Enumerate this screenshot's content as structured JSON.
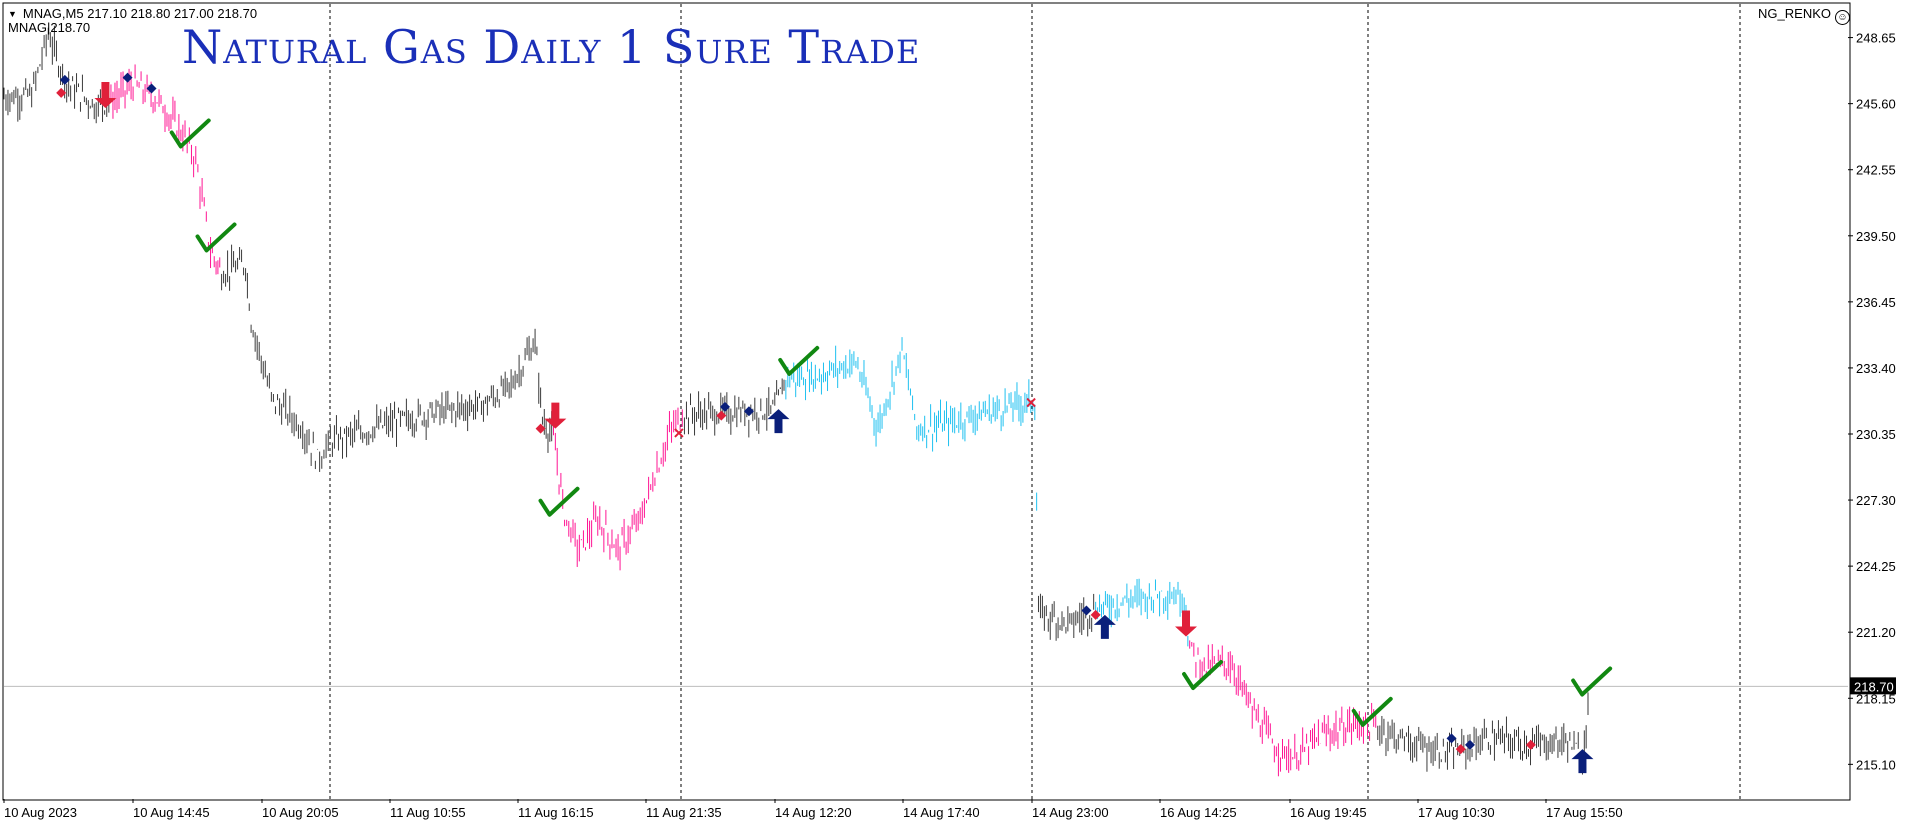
{
  "header": {
    "symbol_info": "MNAG,M5  217.10 218.80 217.00 218.70",
    "price_tag": "MNAG|218.70",
    "banner": "Natural Gas  Daily 1 Sure Trade",
    "indicator_name": "NG_RENKO"
  },
  "colors": {
    "background": "#ffffff",
    "neutral_bars": "#3a3a3a",
    "bearish_trend": "#ff1493",
    "bullish_trend": "#1ec0f0",
    "sell_arrow": "#e0203a",
    "buy_arrow": "#0a1f7a",
    "check": "#118811",
    "banner": "#1a2fb8"
  },
  "chart_data": {
    "type": "line",
    "ylim": [
      213.5,
      250.2
    ],
    "y_ticks": [
      248.65,
      245.6,
      242.55,
      239.5,
      236.45,
      233.4,
      230.35,
      227.3,
      224.25,
      221.2,
      218.15,
      215.1
    ],
    "current_price": 218.7,
    "x_labels": [
      "10 Aug 2023",
      "10 Aug 14:45",
      "10 Aug 20:05",
      "11 Aug 10:55",
      "11 Aug 16:15",
      "11 Aug 21:35",
      "14 Aug 12:20",
      "14 Aug 17:40",
      "14 Aug 23:00",
      "16 Aug 14:25",
      "16 Aug 19:45",
      "17 Aug 10:30",
      "17 Aug 15:50"
    ],
    "session_separators": [
      "11 Aug 2023",
      "14 Aug 2023",
      "16 Aug 2023",
      "17 Aug 2023"
    ],
    "grid": false,
    "price_path": [
      {
        "t": 0.0,
        "p": 245.9,
        "trend": "neutral"
      },
      {
        "t": 0.015,
        "p": 246.0,
        "trend": "neutral"
      },
      {
        "t": 0.024,
        "p": 248.8,
        "trend": "neutral"
      },
      {
        "t": 0.034,
        "p": 246.5,
        "trend": "neutral"
      },
      {
        "t": 0.05,
        "p": 245.5,
        "trend": "neutral"
      },
      {
        "t": 0.058,
        "p": 245.7,
        "trend": "bearish"
      },
      {
        "t": 0.07,
        "p": 246.5,
        "trend": "bearish"
      },
      {
        "t": 0.083,
        "p": 245.8,
        "trend": "bearish"
      },
      {
        "t": 0.097,
        "p": 244.2,
        "trend": "bearish"
      },
      {
        "t": 0.104,
        "p": 243.0,
        "trend": "bearish"
      },
      {
        "t": 0.112,
        "p": 238.8,
        "trend": "bearish"
      },
      {
        "t": 0.118,
        "p": 237.8,
        "trend": "neutral"
      },
      {
        "t": 0.131,
        "p": 238.2,
        "trend": "neutral"
      },
      {
        "t": 0.134,
        "p": 235.6,
        "trend": "neutral"
      },
      {
        "t": 0.145,
        "p": 232.0,
        "trend": "neutral"
      },
      {
        "t": 0.155,
        "p": 231.2,
        "trend": "neutral"
      },
      {
        "t": 0.162,
        "p": 230.6,
        "trend": "neutral"
      },
      {
        "t": 0.17,
        "p": 229.2,
        "trend": "neutral"
      },
      {
        "t": 0.177,
        "p": 230.0,
        "trend": "neutral"
      },
      {
        "t": 0.2,
        "p": 230.6,
        "trend": "neutral"
      },
      {
        "t": 0.23,
        "p": 231.3,
        "trend": "neutral"
      },
      {
        "t": 0.26,
        "p": 231.7,
        "trend": "neutral"
      },
      {
        "t": 0.275,
        "p": 232.6,
        "trend": "neutral"
      },
      {
        "t": 0.288,
        "p": 234.6,
        "trend": "neutral"
      },
      {
        "t": 0.292,
        "p": 231.0,
        "trend": "neutral"
      },
      {
        "t": 0.298,
        "p": 230.2,
        "trend": "bearish"
      },
      {
        "t": 0.304,
        "p": 226.6,
        "trend": "bearish"
      },
      {
        "t": 0.312,
        "p": 225.0,
        "trend": "bearish"
      },
      {
        "t": 0.322,
        "p": 226.4,
        "trend": "bearish"
      },
      {
        "t": 0.333,
        "p": 225.0,
        "trend": "bearish"
      },
      {
        "t": 0.345,
        "p": 226.4,
        "trend": "bearish"
      },
      {
        "t": 0.353,
        "p": 228.5,
        "trend": "bearish"
      },
      {
        "t": 0.362,
        "p": 230.6,
        "trend": "bearish"
      },
      {
        "t": 0.369,
        "p": 231.3,
        "trend": "neutral"
      },
      {
        "t": 0.392,
        "p": 231.3,
        "trend": "neutral"
      },
      {
        "t": 0.418,
        "p": 231.5,
        "trend": "neutral"
      },
      {
        "t": 0.424,
        "p": 232.9,
        "trend": "bullish"
      },
      {
        "t": 0.44,
        "p": 233.0,
        "trend": "bullish"
      },
      {
        "t": 0.462,
        "p": 233.7,
        "trend": "bullish"
      },
      {
        "t": 0.474,
        "p": 230.6,
        "trend": "bullish"
      },
      {
        "t": 0.487,
        "p": 234.3,
        "trend": "bullish"
      },
      {
        "t": 0.495,
        "p": 230.6,
        "trend": "bullish"
      },
      {
        "t": 0.51,
        "p": 230.8,
        "trend": "bullish"
      },
      {
        "t": 0.53,
        "p": 231.3,
        "trend": "bullish"
      },
      {
        "t": 0.559,
        "p": 231.9,
        "trend": "bullish"
      },
      {
        "t": 0.561,
        "p": 222.1,
        "trend": "neutral"
      },
      {
        "t": 0.578,
        "p": 221.6,
        "trend": "neutral"
      },
      {
        "t": 0.592,
        "p": 222.3,
        "trend": "bullish"
      },
      {
        "t": 0.61,
        "p": 222.7,
        "trend": "bullish"
      },
      {
        "t": 0.63,
        "p": 223.0,
        "trend": "bullish"
      },
      {
        "t": 0.64,
        "p": 222.8,
        "trend": "bullish"
      },
      {
        "t": 0.643,
        "p": 220.4,
        "trend": "bearish"
      },
      {
        "t": 0.652,
        "p": 219.6,
        "trend": "bearish"
      },
      {
        "t": 0.665,
        "p": 219.8,
        "trend": "bearish"
      },
      {
        "t": 0.678,
        "p": 217.4,
        "trend": "bearish"
      },
      {
        "t": 0.69,
        "p": 215.8,
        "trend": "bearish"
      },
      {
        "t": 0.7,
        "p": 215.4,
        "trend": "bearish"
      },
      {
        "t": 0.716,
        "p": 216.5,
        "trend": "bearish"
      },
      {
        "t": 0.735,
        "p": 217.0,
        "trend": "bearish"
      },
      {
        "t": 0.745,
        "p": 216.8,
        "trend": "neutral"
      },
      {
        "t": 0.765,
        "p": 216.0,
        "trend": "neutral"
      },
      {
        "t": 0.785,
        "p": 215.6,
        "trend": "neutral"
      },
      {
        "t": 0.805,
        "p": 216.3,
        "trend": "neutral"
      },
      {
        "t": 0.83,
        "p": 216.0,
        "trend": "neutral"
      },
      {
        "t": 0.848,
        "p": 216.2,
        "trend": "neutral"
      },
      {
        "t": 0.856,
        "p": 215.4,
        "trend": "neutral"
      },
      {
        "t": 0.86,
        "p": 218.7,
        "trend": "bullish"
      }
    ],
    "signals": [
      {
        "kind": "sell-arrow",
        "t": 0.055,
        "p": 245.4
      },
      {
        "kind": "sell-arrow",
        "t": 0.299,
        "p": 230.6
      },
      {
        "kind": "sell-arrow",
        "t": 0.641,
        "p": 221.0
      },
      {
        "kind": "buy-arrow",
        "t": 0.42,
        "p": 231.5
      },
      {
        "kind": "buy-arrow",
        "t": 0.597,
        "p": 222.0
      },
      {
        "kind": "buy-arrow",
        "t": 0.856,
        "p": 215.8
      },
      {
        "kind": "check",
        "t": 0.098,
        "p": 243.9
      },
      {
        "kind": "check",
        "t": 0.112,
        "p": 239.1
      },
      {
        "kind": "check",
        "t": 0.298,
        "p": 226.9
      },
      {
        "kind": "check",
        "t": 0.428,
        "p": 233.4
      },
      {
        "kind": "check",
        "t": 0.647,
        "p": 218.9
      },
      {
        "kind": "check",
        "t": 0.739,
        "p": 217.2
      },
      {
        "kind": "check",
        "t": 0.858,
        "p": 218.6
      },
      {
        "kind": "buy-diamond",
        "t": 0.033,
        "p": 246.7
      },
      {
        "kind": "buy-diamond",
        "t": 0.067,
        "p": 246.8
      },
      {
        "kind": "buy-diamond",
        "t": 0.08,
        "p": 246.3
      },
      {
        "kind": "buy-diamond",
        "t": 0.391,
        "p": 231.6
      },
      {
        "kind": "buy-diamond",
        "t": 0.404,
        "p": 231.4
      },
      {
        "kind": "buy-diamond",
        "t": 0.587,
        "p": 222.2
      },
      {
        "kind": "buy-diamond",
        "t": 0.785,
        "p": 216.3
      },
      {
        "kind": "buy-diamond",
        "t": 0.795,
        "p": 216.0
      },
      {
        "kind": "sell-diamond",
        "t": 0.031,
        "p": 246.1
      },
      {
        "kind": "sell-diamond",
        "t": 0.291,
        "p": 230.6
      },
      {
        "kind": "sell-diamond",
        "t": 0.389,
        "p": 231.2
      },
      {
        "kind": "sell-diamond",
        "t": 0.592,
        "p": 222.0
      },
      {
        "kind": "sell-diamond",
        "t": 0.79,
        "p": 215.8
      },
      {
        "kind": "sell-diamond",
        "t": 0.828,
        "p": 216.0
      },
      {
        "kind": "exit-cross",
        "t": 0.366,
        "p": 230.4
      },
      {
        "kind": "exit-cross",
        "t": 0.557,
        "p": 231.8
      }
    ]
  }
}
